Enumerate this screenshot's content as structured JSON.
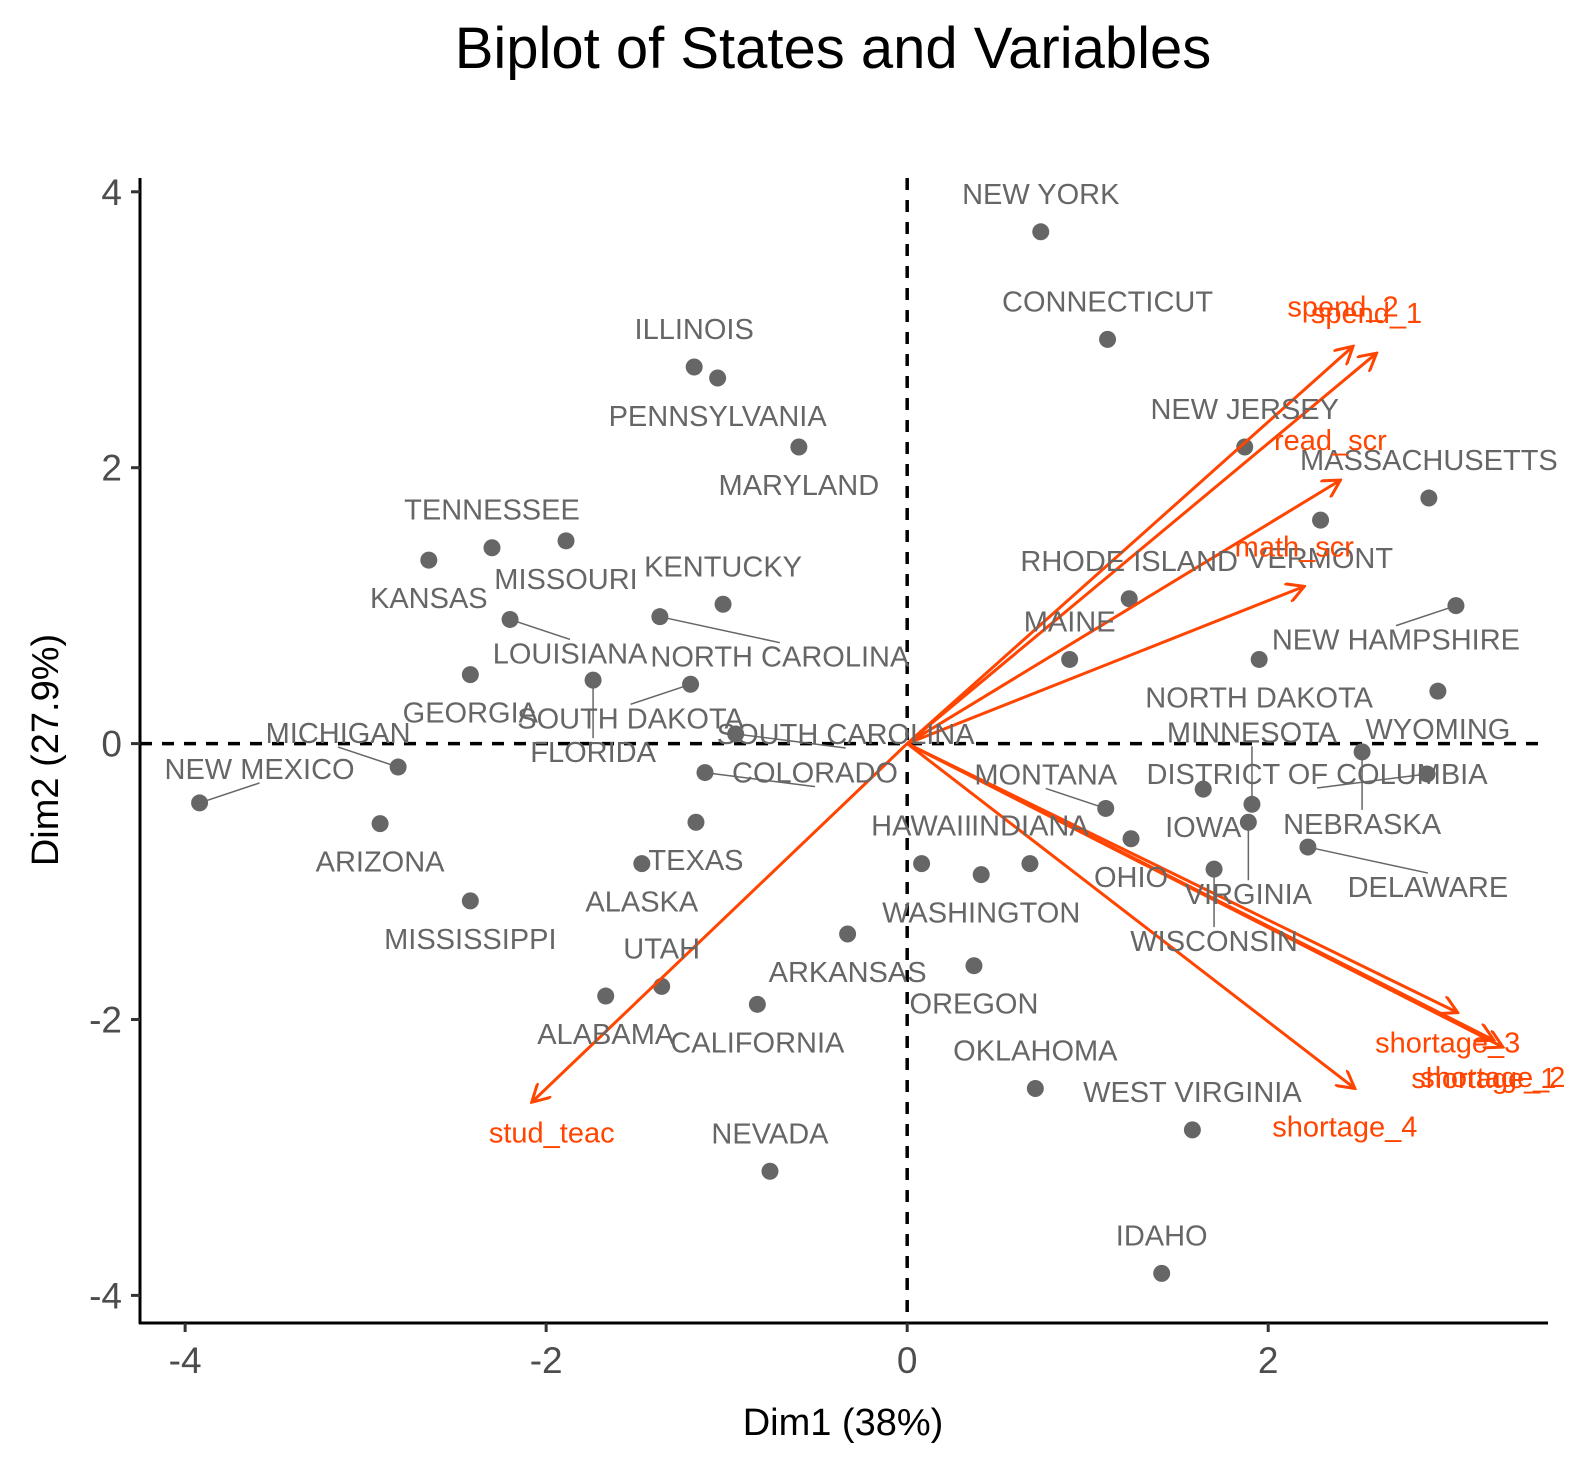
{
  "chart_data": {
    "type": "scatter",
    "title": "Biplot of States and Variables",
    "xlabel": "Dim1 (38%)",
    "ylabel": "Dim2 (27.9%)",
    "xlim": [
      -4.25,
      3.55
    ],
    "ylim": [
      -4.2,
      4.1
    ],
    "xticks": [
      -4,
      -2,
      0,
      2
    ],
    "xtick_labels": [
      "-4",
      "-2",
      "0",
      "2"
    ],
    "yticks": [
      -4,
      -2,
      0,
      2,
      4
    ],
    "ytick_labels": [
      "-4",
      "-2",
      "0",
      "2",
      "4"
    ],
    "grid": false,
    "reference_lines": [
      0,
      0
    ],
    "point_color": "#666666",
    "arrow_color": "#ff4500",
    "points": [
      {
        "label": "NEW YORK",
        "x": 0.74,
        "y": 3.71
      },
      {
        "label": "CONNECTICUT",
        "x": 1.11,
        "y": 2.93
      },
      {
        "label": "ILLINOIS",
        "x": -1.18,
        "y": 2.73
      },
      {
        "label": "PENNSYLVANIA",
        "x": -1.05,
        "y": 2.65
      },
      {
        "label": "MARYLAND",
        "x": -0.6,
        "y": 2.15
      },
      {
        "label": "NEW JERSEY",
        "x": 1.87,
        "y": 2.15
      },
      {
        "label": "MASSACHUSETTS",
        "x": 2.89,
        "y": 1.78
      },
      {
        "label": "VERMONT",
        "x": 2.29,
        "y": 1.62
      },
      {
        "label": "TENNESSEE",
        "x": -2.3,
        "y": 1.42
      },
      {
        "label": "MISSOURI",
        "x": -1.89,
        "y": 1.47
      },
      {
        "label": "KANSAS",
        "x": -2.65,
        "y": 1.33
      },
      {
        "label": "KENTUCKY",
        "x": -1.02,
        "y": 1.01
      },
      {
        "label": "LOUISIANA",
        "x": -2.2,
        "y": 0.9
      },
      {
        "label": "NORTH CAROLINA",
        "x": -1.37,
        "y": 0.92
      },
      {
        "label": "RHODE ISLAND",
        "x": 1.23,
        "y": 1.05
      },
      {
        "label": "NEW HAMPSHIRE",
        "x": 3.04,
        "y": 1.0
      },
      {
        "label": "MAINE",
        "x": 0.9,
        "y": 0.61
      },
      {
        "label": "NORTH DAKOTA",
        "x": 1.95,
        "y": 0.61
      },
      {
        "label": "SOUTH DAKOTA",
        "x": -1.2,
        "y": 0.43
      },
      {
        "label": "GEORGIA",
        "x": -2.42,
        "y": 0.5
      },
      {
        "label": "FLORIDA",
        "x": -1.74,
        "y": 0.46
      },
      {
        "label": "WYOMING",
        "x": 2.94,
        "y": 0.38
      },
      {
        "label": "SOUTH CAROLINA",
        "x": -0.95,
        "y": 0.07
      },
      {
        "label": "MINNESOTA",
        "x": 1.91,
        "y": -0.44
      },
      {
        "label": "NEBRASKA",
        "x": 2.52,
        "y": -0.06
      },
      {
        "label": "DISTRICT OF COLUMBIA",
        "x": 2.88,
        "y": -0.22
      },
      {
        "label": "MICHIGAN",
        "x": -2.82,
        "y": -0.17
      },
      {
        "label": "COLORADO",
        "x": -1.12,
        "y": -0.21
      },
      {
        "label": "NEW MEXICO",
        "x": -3.92,
        "y": -0.43
      },
      {
        "label": "MONTANA",
        "x": 1.1,
        "y": -0.47
      },
      {
        "label": "IOWA",
        "x": 1.64,
        "y": -0.33
      },
      {
        "label": "HAWAII",
        "x": 0.08,
        "y": -0.87
      },
      {
        "label": "ARIZONA",
        "x": -2.92,
        "y": -0.58
      },
      {
        "label": "INDIANA",
        "x": 0.68,
        "y": -0.87
      },
      {
        "label": "OHIO",
        "x": 1.24,
        "y": -0.69
      },
      {
        "label": "VIRGINIA",
        "x": 1.89,
        "y": -0.57
      },
      {
        "label": "DELAWARE",
        "x": 2.22,
        "y": -0.75
      },
      {
        "label": "WISCONSIN",
        "x": 1.7,
        "y": -0.91
      },
      {
        "label": "TEXAS",
        "x": -1.17,
        "y": -0.57
      },
      {
        "label": "ALASKA",
        "x": -1.47,
        "y": -0.87
      },
      {
        "label": "WASHINGTON",
        "x": 0.41,
        "y": -0.95
      },
      {
        "label": "MISSISSIPPI",
        "x": -2.42,
        "y": -1.14
      },
      {
        "label": "ARKANSAS",
        "x": -0.33,
        "y": -1.38
      },
      {
        "label": "UTAH",
        "x": -1.36,
        "y": -1.76
      },
      {
        "label": "ALABAMA",
        "x": -1.67,
        "y": -1.83
      },
      {
        "label": "CALIFORNIA",
        "x": -0.83,
        "y": -1.89
      },
      {
        "label": "OREGON",
        "x": 0.37,
        "y": -1.61
      },
      {
        "label": "OKLAHOMA",
        "x": 0.71,
        "y": -2.5
      },
      {
        "label": "WEST VIRGINIA",
        "x": 1.58,
        "y": -2.8
      },
      {
        "label": "NEVADA",
        "x": -0.76,
        "y": -3.1
      },
      {
        "label": "IDAHO",
        "x": 1.41,
        "y": -3.84
      }
    ],
    "variables": [
      {
        "name": "spend_2",
        "x": 2.47,
        "y": 2.88
      },
      {
        "name": "spend_1",
        "x": 2.6,
        "y": 2.83
      },
      {
        "name": "read_scr",
        "x": 2.4,
        "y": 1.91
      },
      {
        "name": "math_scr",
        "x": 2.2,
        "y": 1.14
      },
      {
        "name": "shortage_3",
        "x": 3.05,
        "y": -1.95
      },
      {
        "name": "shortage_1",
        "x": 3.25,
        "y": -2.15
      },
      {
        "name": "shortage_2",
        "x": 3.3,
        "y": -2.2
      },
      {
        "name": "shortage_4",
        "x": 2.48,
        "y": -2.5
      },
      {
        "name": "stud_teac",
        "x": -2.08,
        "y": -2.6
      }
    ]
  }
}
